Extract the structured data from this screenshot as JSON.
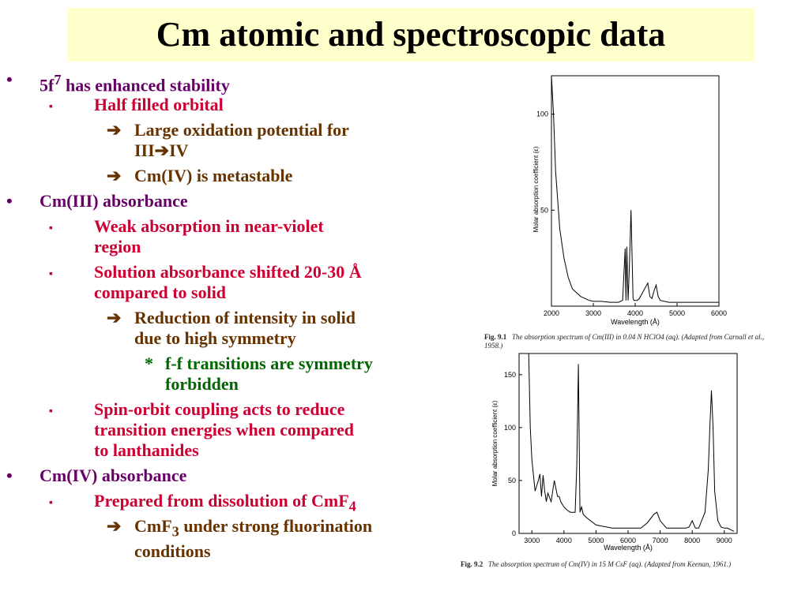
{
  "title": "Cm atomic and spectroscopic data",
  "bullets": [
    {
      "level": 1,
      "marker": "•",
      "html": "5f<sup>7</sup> has enhanced stability"
    },
    {
      "level": 2,
      "marker": "▪",
      "html": "Half filled orbital"
    },
    {
      "level": 3,
      "marker": "➔",
      "html": "Large oxidation potential for<br>III➔IV"
    },
    {
      "level": 3,
      "marker": "➔",
      "html": "Cm(IV) is metastable"
    },
    {
      "level": 1,
      "marker": "•",
      "html": "Cm(III) absorbance"
    },
    {
      "level": 2,
      "marker": "▪",
      "html": "Weak absorption in near-violet<br>region"
    },
    {
      "level": 2,
      "marker": "▪",
      "html": "Solution absorbance shifted 20-30 Å<br>compared to solid"
    },
    {
      "level": 3,
      "marker": "➔",
      "html": "Reduction of intensity in solid<br>due to high symmetry"
    },
    {
      "level": 4,
      "marker": "*",
      "html": "f-f transitions are symmetry<br>forbidden"
    },
    {
      "level": 2,
      "marker": "▪",
      "html": "Spin-orbit coupling acts to reduce<br>transition energies when compared<br>to lanthanides"
    },
    {
      "level": 1,
      "marker": "•",
      "html": "Cm(IV) absorbance"
    },
    {
      "level": 2,
      "marker": "▪",
      "html": "Prepared from dissolution of CmF<sub>4</sub>"
    },
    {
      "level": 3,
      "marker": "➔",
      "html": "CmF<sub>3</sub> under strong fluorination<br>conditions"
    }
  ],
  "fig1": {
    "caption_label": "Fig. 9.1",
    "caption_text": "The absorption spectrum of Cm(III) in 0.04 N HClO4 (aq). (Adapted from Carnall et al., 1958.)",
    "xlabel": "Wavelength (Å)",
    "ylabel": "Molar absorption coefficient (ε)",
    "xticks": [
      "2000",
      "3000",
      "4000",
      "5000",
      "6000"
    ],
    "yticks": [
      "50",
      "100"
    ]
  },
  "fig2": {
    "caption_label": "Fig. 9.2",
    "caption_text": "The absorption spectrum of Cm(IV) in 15 M CsF (aq). (Adapted from Keenan, 1961.)",
    "xlabel": "Wavelength (Å)",
    "ylabel": "Molar absorption coefficient (ε)",
    "xticks": [
      "3000",
      "4000",
      "5000",
      "6000",
      "7000",
      "8000",
      "9000"
    ],
    "yticks": [
      "0",
      "50",
      "100",
      "150"
    ]
  },
  "chart_data": [
    {
      "type": "line",
      "xlabel": "Wavelength (Å)",
      "ylabel": "Molar absorption coefficient (ε)",
      "xlim": [
        2000,
        6000
      ],
      "ylim": [
        0,
        120
      ],
      "series": [
        {
          "x": [
            2000,
            2050,
            2100,
            2200,
            2300,
            2400,
            2500,
            2700,
            2900,
            3000,
            3200,
            3400,
            3600,
            3700,
            3760,
            3780,
            3800,
            3830,
            3860,
            3900,
            3950,
            3970,
            4000,
            4050,
            4100,
            4200,
            4300,
            4350,
            4400,
            4450,
            4500,
            4550,
            4600,
            4800,
            5000,
            5500,
            6000
          ],
          "y": [
            120,
            100,
            70,
            40,
            25,
            15,
            9,
            5,
            3,
            2.5,
            2.5,
            2,
            2,
            3,
            30,
            3,
            31,
            3,
            20,
            50,
            4,
            3,
            3,
            3,
            4,
            8,
            12,
            5,
            4,
            8,
            11,
            5,
            3,
            2,
            2,
            2,
            2
          ]
        }
      ]
    },
    {
      "type": "line",
      "xlabel": "Wavelength (Å)",
      "ylabel": "Molar absorption coefficient (ε)",
      "xlim": [
        2600,
        9400
      ],
      "ylim": [
        0,
        170
      ],
      "series": [
        {
          "x": [
            2900,
            2950,
            3000,
            3100,
            3200,
            3250,
            3300,
            3350,
            3400,
            3450,
            3500,
            3600,
            3700,
            3800,
            3850,
            3900,
            4000,
            4100,
            4200,
            4350,
            4400,
            4450,
            4500,
            4550,
            4600,
            4700,
            5000,
            5500,
            6000,
            6400,
            6600,
            6800,
            6900,
            7000,
            7200,
            7500,
            7800,
            7900,
            8000,
            8100,
            8200,
            8400,
            8500,
            8550,
            8600,
            8650,
            8700,
            8800,
            8900,
            9000,
            9100,
            9300
          ],
          "y": [
            170,
            100,
            70,
            40,
            50,
            56,
            35,
            55,
            40,
            30,
            38,
            30,
            50,
            35,
            35,
            30,
            25,
            22,
            20,
            20,
            65,
            160,
            20,
            25,
            18,
            15,
            8,
            5,
            5,
            5,
            10,
            18,
            20,
            12,
            5,
            5,
            5,
            6,
            12,
            5,
            5,
            20,
            60,
            100,
            135,
            100,
            40,
            12,
            6,
            5,
            5,
            2
          ]
        }
      ]
    }
  ]
}
